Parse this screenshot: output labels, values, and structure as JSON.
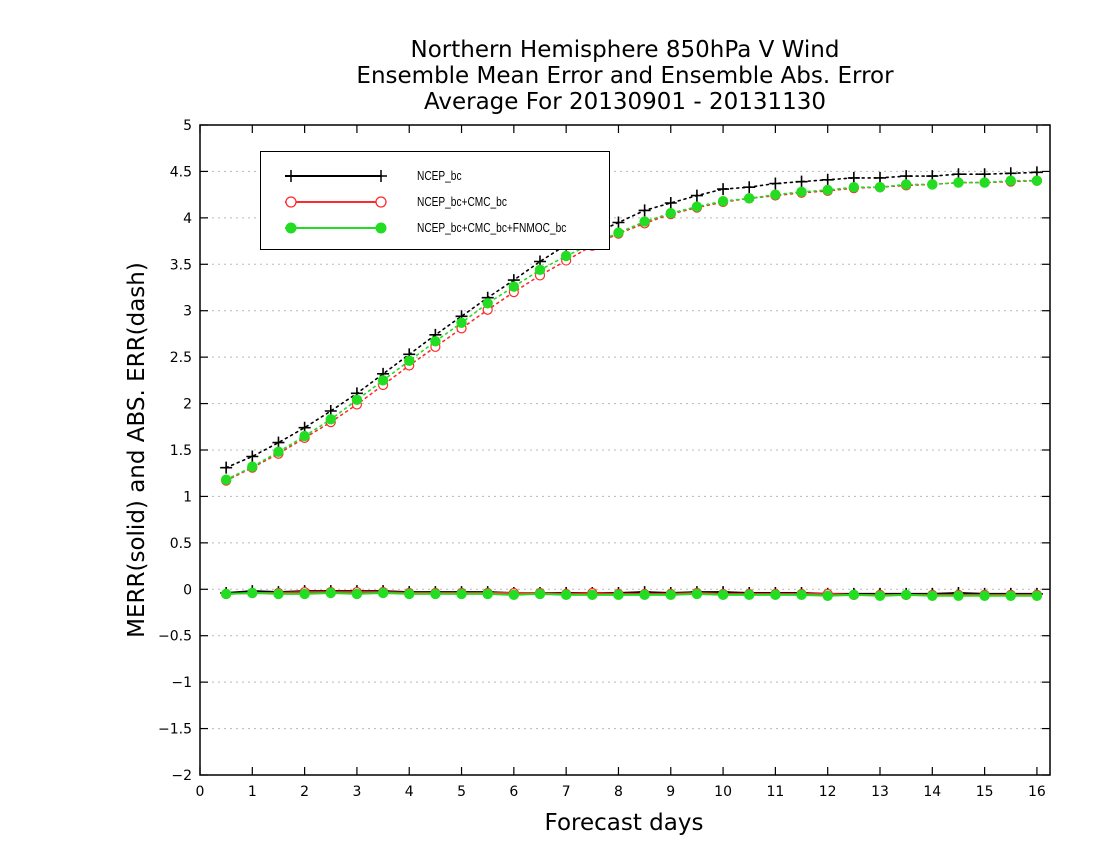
{
  "chart_data": {
    "type": "line",
    "title": [
      "Northern Hemisphere 850hPa V Wind",
      "Ensemble Mean Error and Ensemble Abs. Error",
      "Average For 20130901 - 20131130"
    ],
    "xlabel": "Forecast days",
    "ylabel": "MERR(solid) and ABS. ERR(dash)",
    "xlim": [
      0,
      16.25
    ],
    "ylim": [
      -2,
      5
    ],
    "xticks": [
      0,
      1,
      2,
      3,
      4,
      5,
      6,
      7,
      8,
      9,
      10,
      11,
      12,
      13,
      14,
      15,
      16
    ],
    "yticks": [
      -2,
      -1.5,
      -1,
      -0.5,
      0,
      0.5,
      1,
      1.5,
      2,
      2.5,
      3,
      3.5,
      4,
      4.5,
      5
    ],
    "ytick_labels": [
      "−2",
      "−1.5",
      "−1",
      "−0.5",
      "0",
      "0.5",
      "1",
      "1.5",
      "2",
      "2.5",
      "3",
      "3.5",
      "4",
      "4.5",
      "5"
    ],
    "grid": "horizontal dotted",
    "legend_position": "top-left",
    "x": [
      0.5,
      1,
      1.5,
      2,
      2.5,
      3,
      3.5,
      4,
      4.5,
      5,
      5.5,
      6,
      6.5,
      7,
      7.5,
      8,
      8.5,
      9,
      9.5,
      10,
      10.5,
      11,
      11.5,
      12,
      12.5,
      13,
      13.5,
      14,
      14.5,
      15,
      15.5,
      16
    ],
    "series": [
      {
        "name": "NCEP_bc",
        "color": "#000000",
        "marker": "plus",
        "abs_err": [
          1.31,
          1.43,
          1.58,
          1.74,
          1.92,
          2.11,
          2.32,
          2.53,
          2.74,
          2.94,
          3.14,
          3.33,
          3.53,
          3.71,
          3.82,
          3.95,
          4.08,
          4.16,
          4.24,
          4.31,
          4.33,
          4.37,
          4.39,
          4.41,
          4.43,
          4.43,
          4.45,
          4.45,
          4.47,
          4.47,
          4.48,
          4.49
        ],
        "mean_err": [
          -0.04,
          -0.02,
          -0.03,
          -0.02,
          -0.02,
          -0.02,
          -0.02,
          -0.03,
          -0.03,
          -0.03,
          -0.03,
          -0.04,
          -0.04,
          -0.04,
          -0.04,
          -0.04,
          -0.03,
          -0.04,
          -0.03,
          -0.03,
          -0.04,
          -0.04,
          -0.04,
          -0.05,
          -0.05,
          -0.05,
          -0.05,
          -0.05,
          -0.04,
          -0.05,
          -0.05,
          -0.05
        ]
      },
      {
        "name": "NCEP_bc+CMC_bc",
        "color": "#ff2a2a",
        "marker": "circle-open",
        "abs_err": [
          1.17,
          1.31,
          1.46,
          1.63,
          1.8,
          1.99,
          2.2,
          2.41,
          2.61,
          2.81,
          3.01,
          3.2,
          3.38,
          3.54,
          3.7,
          3.83,
          3.94,
          4.04,
          4.11,
          4.17,
          4.21,
          4.24,
          4.27,
          4.29,
          4.32,
          4.33,
          4.35,
          4.36,
          4.38,
          4.38,
          4.39,
          4.4
        ],
        "mean_err": [
          -0.05,
          -0.04,
          -0.04,
          -0.03,
          -0.03,
          -0.03,
          -0.03,
          -0.04,
          -0.04,
          -0.04,
          -0.04,
          -0.04,
          -0.04,
          -0.05,
          -0.04,
          -0.05,
          -0.05,
          -0.05,
          -0.04,
          -0.05,
          -0.05,
          -0.05,
          -0.05,
          -0.05,
          -0.06,
          -0.06,
          -0.06,
          -0.06,
          -0.06,
          -0.06,
          -0.06,
          -0.06
        ]
      },
      {
        "name": "NCEP_bc+CMC_bc+FNMOC_bc",
        "color": "#22dd22",
        "marker": "circle-filled",
        "abs_err": [
          1.18,
          1.32,
          1.48,
          1.65,
          1.83,
          2.04,
          2.25,
          2.46,
          2.67,
          2.87,
          3.08,
          3.26,
          3.44,
          3.59,
          3.72,
          3.84,
          3.96,
          4.05,
          4.12,
          4.18,
          4.21,
          4.25,
          4.28,
          4.3,
          4.33,
          4.33,
          4.36,
          4.36,
          4.38,
          4.38,
          4.4,
          4.4
        ],
        "mean_err": [
          -0.05,
          -0.04,
          -0.05,
          -0.05,
          -0.04,
          -0.05,
          -0.04,
          -0.05,
          -0.05,
          -0.05,
          -0.05,
          -0.06,
          -0.05,
          -0.06,
          -0.06,
          -0.06,
          -0.06,
          -0.06,
          -0.05,
          -0.06,
          -0.06,
          -0.06,
          -0.06,
          -0.07,
          -0.06,
          -0.07,
          -0.06,
          -0.07,
          -0.07,
          -0.07,
          -0.07,
          -0.07
        ]
      }
    ]
  }
}
